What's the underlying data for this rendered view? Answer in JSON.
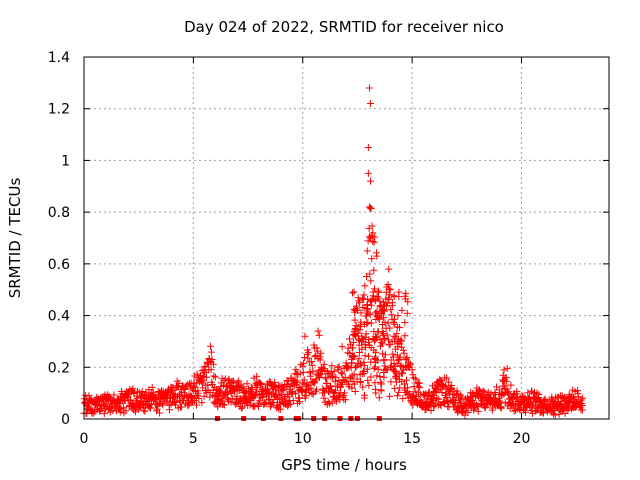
{
  "chart_data": {
    "type": "scatter",
    "title": "Day 024 of 2022, SRMTID for receiver nico",
    "xlabel": "GPS time / hours",
    "ylabel": "SRMTID / TECUs",
    "xlim": [
      0,
      24
    ],
    "ylim": [
      0,
      1.4
    ],
    "grid": true,
    "x_ticks": [
      0,
      5,
      10,
      15,
      20
    ],
    "x_tick_labels": [
      "0",
      "5",
      "10",
      "15",
      "20"
    ],
    "y_ticks": [
      0,
      0.2,
      0.4,
      0.6,
      0.8,
      1.0,
      1.2,
      1.4
    ],
    "y_tick_labels": [
      "0",
      "0.2",
      "0.4",
      "0.6",
      "0.8",
      "1",
      "1.2",
      "1.4"
    ],
    "series_color": "#ff0000",
    "marker": "plus",
    "anchors": [
      [
        0.0,
        0.05
      ],
      [
        0.5,
        0.05
      ],
      [
        1.0,
        0.06
      ],
      [
        1.5,
        0.05
      ],
      [
        2.0,
        0.07
      ],
      [
        2.5,
        0.06
      ],
      [
        3.0,
        0.07
      ],
      [
        3.5,
        0.06
      ],
      [
        4.0,
        0.08
      ],
      [
        4.5,
        0.09
      ],
      [
        5.0,
        0.1
      ],
      [
        5.5,
        0.13
      ],
      [
        5.8,
        0.18
      ],
      [
        6.0,
        0.1
      ],
      [
        6.5,
        0.09
      ],
      [
        7.0,
        0.1
      ],
      [
        7.5,
        0.08
      ],
      [
        8.0,
        0.1
      ],
      [
        8.5,
        0.09
      ],
      [
        9.0,
        0.08
      ],
      [
        9.5,
        0.1
      ],
      [
        10.0,
        0.15
      ],
      [
        10.5,
        0.18
      ],
      [
        10.8,
        0.22
      ],
      [
        11.0,
        0.12
      ],
      [
        11.5,
        0.12
      ],
      [
        12.0,
        0.15
      ],
      [
        12.3,
        0.25
      ],
      [
        12.6,
        0.32
      ],
      [
        12.9,
        0.35
      ],
      [
        13.1,
        0.55
      ],
      [
        13.3,
        0.45
      ],
      [
        13.6,
        0.3
      ],
      [
        13.9,
        0.38
      ],
      [
        14.2,
        0.25
      ],
      [
        14.6,
        0.18
      ],
      [
        15.0,
        0.12
      ],
      [
        15.5,
        0.06
      ],
      [
        16.0,
        0.08
      ],
      [
        16.5,
        0.1
      ],
      [
        17.0,
        0.06
      ],
      [
        17.5,
        0.05
      ],
      [
        18.0,
        0.07
      ],
      [
        18.5,
        0.06
      ],
      [
        19.0,
        0.07
      ],
      [
        19.3,
        0.14
      ],
      [
        19.6,
        0.07
      ],
      [
        20.0,
        0.06
      ],
      [
        20.5,
        0.06
      ],
      [
        21.0,
        0.05
      ],
      [
        21.5,
        0.05
      ],
      [
        22.0,
        0.06
      ],
      [
        22.5,
        0.06
      ],
      [
        22.8,
        0.06
      ]
    ],
    "spikes": [
      [
        13.05,
        1.28
      ],
      [
        13.1,
        1.22
      ],
      [
        13.0,
        1.05
      ],
      [
        13.0,
        0.95
      ],
      [
        13.1,
        0.92
      ],
      [
        13.05,
        0.82
      ],
      [
        13.1,
        0.7
      ],
      [
        13.15,
        0.62
      ],
      [
        12.95,
        0.65
      ],
      [
        13.2,
        0.72
      ],
      [
        12.6,
        0.45
      ],
      [
        12.8,
        0.48
      ],
      [
        13.9,
        0.52
      ],
      [
        14.0,
        0.5
      ],
      [
        14.1,
        0.45
      ],
      [
        13.7,
        0.42
      ],
      [
        10.7,
        0.34
      ],
      [
        10.1,
        0.32
      ],
      [
        5.8,
        0.22
      ],
      [
        19.2,
        0.19
      ],
      [
        11.8,
        0.28
      ],
      [
        12.4,
        0.42
      ],
      [
        13.4,
        0.4
      ],
      [
        14.3,
        0.33
      ]
    ],
    "zeros": [
      6.1,
      7.3,
      8.2,
      9.0,
      9.7,
      9.8,
      10.5,
      11.0,
      11.7,
      12.2,
      12.5,
      13.5
    ]
  }
}
